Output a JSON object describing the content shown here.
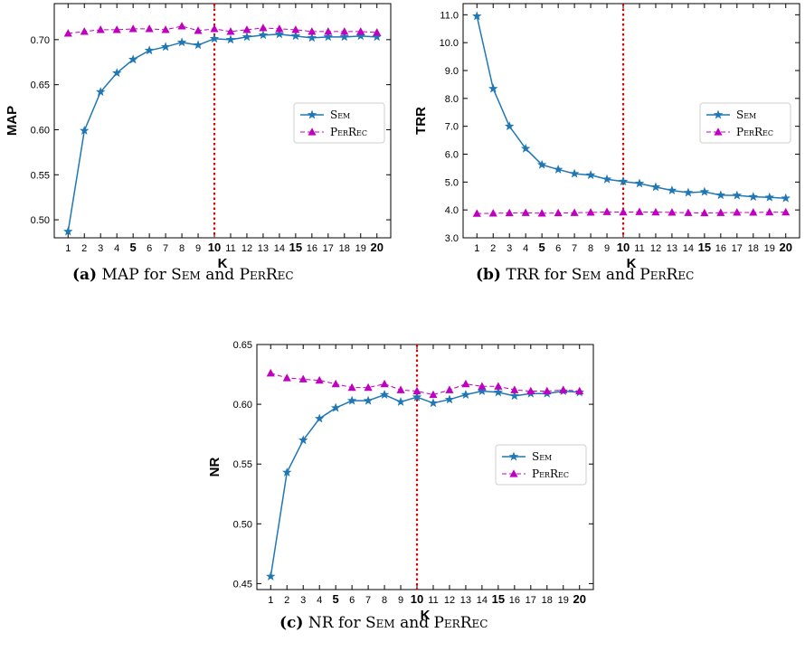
{
  "chart_data": [
    {
      "type": "line",
      "panel": "a",
      "caption_tag": "(a)",
      "caption_text": "MAP for Sem and PerRec",
      "xlabel": "K",
      "ylabel": "MAP",
      "x": [
        1,
        2,
        3,
        4,
        5,
        6,
        7,
        8,
        9,
        10,
        11,
        12,
        13,
        14,
        15,
        16,
        17,
        18,
        19,
        20
      ],
      "ylim": [
        0.48,
        0.74
      ],
      "yticks": [
        0.5,
        0.55,
        0.6,
        0.65,
        0.7
      ],
      "ytick_labels": [
        "0.50",
        "0.55",
        "0.60",
        "0.65",
        "0.70"
      ],
      "vline": 10,
      "legend_position": "center-right",
      "series": [
        {
          "name": "Sem",
          "style": "solid",
          "marker": "star",
          "color": "#1f77b4",
          "values": [
            0.487,
            0.599,
            0.642,
            0.663,
            0.678,
            0.688,
            0.692,
            0.697,
            0.694,
            0.701,
            0.7,
            0.703,
            0.705,
            0.706,
            0.704,
            0.702,
            0.703,
            0.703,
            0.704,
            0.703
          ]
        },
        {
          "name": "PerRec",
          "style": "dashed",
          "marker": "triangle",
          "color": "#c000c0",
          "values": [
            0.707,
            0.709,
            0.711,
            0.711,
            0.712,
            0.712,
            0.711,
            0.715,
            0.71,
            0.712,
            0.709,
            0.711,
            0.713,
            0.712,
            0.711,
            0.709,
            0.709,
            0.709,
            0.709,
            0.708
          ]
        }
      ]
    },
    {
      "type": "line",
      "panel": "b",
      "caption_tag": "(b)",
      "caption_text": "TRR for Sem and PerRec",
      "xlabel": "K",
      "ylabel": "TRR",
      "x": [
        1,
        2,
        3,
        4,
        5,
        6,
        7,
        8,
        9,
        10,
        11,
        12,
        13,
        14,
        15,
        16,
        17,
        18,
        19,
        20
      ],
      "ylim": [
        3.0,
        11.4
      ],
      "yticks": [
        3.0,
        4.0,
        5.0,
        6.0,
        7.0,
        8.0,
        9.0,
        10.0,
        11.0
      ],
      "ytick_labels": [
        "3.0",
        "4.0",
        "5.0",
        "6.0",
        "7.0",
        "8.0",
        "9.0",
        "10.0",
        "11.0"
      ],
      "vline": 10,
      "legend_position": "center-right",
      "series": [
        {
          "name": "Sem",
          "style": "solid",
          "marker": "star",
          "color": "#1f77b4",
          "values": [
            10.95,
            8.35,
            7.0,
            6.2,
            5.62,
            5.45,
            5.3,
            5.25,
            5.1,
            5.02,
            4.95,
            4.82,
            4.7,
            4.62,
            4.65,
            4.53,
            4.52,
            4.47,
            4.45,
            4.42
          ]
        },
        {
          "name": "PerRec",
          "style": "dashed",
          "marker": "triangle",
          "color": "#c000c0",
          "values": [
            3.87,
            3.88,
            3.89,
            3.9,
            3.88,
            3.89,
            3.9,
            3.91,
            3.93,
            3.92,
            3.93,
            3.92,
            3.91,
            3.9,
            3.89,
            3.9,
            3.91,
            3.91,
            3.92,
            3.92
          ]
        }
      ]
    },
    {
      "type": "line",
      "panel": "c",
      "caption_tag": "(c)",
      "caption_text": "NR for Sem and PerRec",
      "xlabel": "K",
      "ylabel": "NR",
      "x": [
        1,
        2,
        3,
        4,
        5,
        6,
        7,
        8,
        9,
        10,
        11,
        12,
        13,
        14,
        15,
        16,
        17,
        18,
        19,
        20
      ],
      "ylim": [
        0.445,
        0.65
      ],
      "yticks": [
        0.45,
        0.5,
        0.55,
        0.6,
        0.65
      ],
      "ytick_labels": [
        "0.45",
        "0.50",
        "0.55",
        "0.60",
        "0.65"
      ],
      "vline": 10,
      "legend_position": "center-right",
      "series": [
        {
          "name": "Sem",
          "style": "solid",
          "marker": "star",
          "color": "#1f77b4",
          "values": [
            0.456,
            0.543,
            0.57,
            0.588,
            0.597,
            0.603,
            0.603,
            0.608,
            0.602,
            0.606,
            0.601,
            0.604,
            0.608,
            0.611,
            0.61,
            0.607,
            0.609,
            0.609,
            0.611,
            0.61
          ]
        },
        {
          "name": "PerRec",
          "style": "dashed",
          "marker": "triangle",
          "color": "#c000c0",
          "values": [
            0.626,
            0.622,
            0.621,
            0.62,
            0.617,
            0.614,
            0.614,
            0.617,
            0.612,
            0.611,
            0.608,
            0.612,
            0.617,
            0.615,
            0.615,
            0.612,
            0.611,
            0.611,
            0.612,
            0.611
          ]
        }
      ]
    }
  ],
  "xtick_labels": [
    "1",
    "2",
    "3",
    "4",
    "5",
    "6",
    "7",
    "8",
    "9",
    "10",
    "11",
    "12",
    "13",
    "14",
    "15",
    "16",
    "17",
    "18",
    "19",
    "20"
  ],
  "xtick_bold": [
    5,
    10,
    15,
    20
  ],
  "colors": {
    "sem": "#1f77b4",
    "perrec": "#c000c0",
    "vline": "#e00000"
  }
}
